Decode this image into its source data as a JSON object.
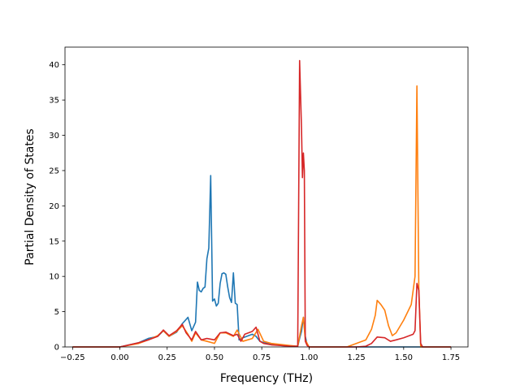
{
  "chart_data": {
    "type": "line",
    "title": "",
    "xlabel": "Frequency (THz)",
    "ylabel": "Partial Density of States",
    "xlim": [
      -0.29,
      1.84
    ],
    "ylim": [
      0,
      42.5
    ],
    "xticks": [
      -0.25,
      0.0,
      0.25,
      0.5,
      0.75,
      1.0,
      1.25,
      1.5,
      1.75
    ],
    "xtick_labels": [
      "−0.25",
      "0.00",
      "0.25",
      "0.50",
      "0.75",
      "1.00",
      "1.25",
      "1.50",
      "1.75"
    ],
    "yticks": [
      0,
      5,
      10,
      15,
      20,
      25,
      30,
      35,
      40
    ],
    "ytick_labels": [
      "0",
      "5",
      "10",
      "15",
      "20",
      "25",
      "30",
      "35",
      "40"
    ],
    "grid": false,
    "legend": false,
    "series": [
      {
        "color": "#1f77b4",
        "x": [
          -0.25,
          0.0,
          0.05,
          0.1,
          0.15,
          0.2,
          0.23,
          0.26,
          0.3,
          0.33,
          0.36,
          0.38,
          0.4,
          0.41,
          0.42,
          0.43,
          0.44,
          0.45,
          0.46,
          0.47,
          0.48,
          0.49,
          0.5,
          0.51,
          0.52,
          0.53,
          0.54,
          0.55,
          0.56,
          0.57,
          0.58,
          0.59,
          0.6,
          0.61,
          0.62,
          0.63,
          0.65,
          0.67,
          0.7,
          0.72,
          0.74,
          0.76,
          0.8,
          0.85,
          0.9,
          0.94,
          0.95,
          0.96,
          0.97,
          0.98,
          0.99,
          1.0,
          1.3,
          1.5,
          1.6,
          1.75
        ],
        "y": [
          0,
          0,
          0.3,
          0.6,
          1.2,
          1.5,
          2.3,
          1.5,
          2.1,
          3.3,
          4.2,
          2.3,
          3.5,
          9.2,
          8.0,
          7.8,
          8.3,
          8.5,
          12.5,
          14.0,
          24.3,
          6.5,
          6.8,
          5.8,
          6.2,
          9.0,
          10.4,
          10.5,
          10.3,
          8.5,
          7.0,
          6.3,
          10.5,
          6.2,
          6.0,
          1.0,
          1.3,
          1.5,
          1.8,
          1.5,
          0.8,
          0.6,
          0.4,
          0.2,
          0.1,
          0.1,
          1.2,
          2.2,
          4.2,
          1.5,
          0.3,
          0,
          0,
          0,
          0,
          0
        ]
      },
      {
        "color": "#ff7f0e",
        "x": [
          -0.25,
          0.0,
          0.1,
          0.15,
          0.2,
          0.23,
          0.26,
          0.3,
          0.33,
          0.36,
          0.38,
          0.4,
          0.43,
          0.46,
          0.5,
          0.53,
          0.56,
          0.6,
          0.62,
          0.65,
          0.7,
          0.73,
          0.76,
          0.8,
          0.9,
          0.94,
          0.95,
          0.96,
          0.97,
          0.98,
          1.0,
          1.2,
          1.3,
          1.33,
          1.35,
          1.36,
          1.38,
          1.4,
          1.42,
          1.44,
          1.46,
          1.5,
          1.54,
          1.56,
          1.57,
          1.58,
          1.59,
          1.75
        ],
        "y": [
          0,
          0,
          0.5,
          1.0,
          1.6,
          2.3,
          1.5,
          2.2,
          3.0,
          1.8,
          0.8,
          2.0,
          1.0,
          0.8,
          0.5,
          2.0,
          2.0,
          1.5,
          2.4,
          0.8,
          1.2,
          2.5,
          0.8,
          0.5,
          0.2,
          0.1,
          1.5,
          3.0,
          4.2,
          1.0,
          0,
          0,
          1.0,
          2.5,
          4.5,
          6.6,
          6.0,
          5.2,
          3.0,
          1.6,
          2.0,
          3.8,
          6.0,
          10.0,
          37.0,
          8.5,
          0,
          0
        ]
      },
      {
        "color": "#d62728",
        "x": [
          -0.25,
          0.0,
          0.1,
          0.15,
          0.2,
          0.23,
          0.26,
          0.3,
          0.33,
          0.35,
          0.38,
          0.4,
          0.41,
          0.43,
          0.46,
          0.5,
          0.53,
          0.56,
          0.6,
          0.62,
          0.64,
          0.66,
          0.68,
          0.7,
          0.72,
          0.74,
          0.76,
          0.8,
          0.85,
          0.9,
          0.94,
          0.95,
          0.96,
          0.965,
          0.97,
          0.975,
          0.98,
          0.99,
          1.0,
          1.25,
          1.3,
          1.33,
          1.36,
          1.4,
          1.43,
          1.46,
          1.5,
          1.55,
          1.56,
          1.57,
          1.58,
          1.59,
          1.6,
          1.75
        ],
        "y": [
          0,
          0,
          0.6,
          1.0,
          1.5,
          2.4,
          1.6,
          2.3,
          3.2,
          2.0,
          1.0,
          2.2,
          1.8,
          1.0,
          1.2,
          1.0,
          2.0,
          2.1,
          1.6,
          1.8,
          0.8,
          1.8,
          2.0,
          2.2,
          2.8,
          0.8,
          0.5,
          0.3,
          0.2,
          0.1,
          0.1,
          40.6,
          31.0,
          24.0,
          27.5,
          25.0,
          0.8,
          0.2,
          0,
          0,
          0.1,
          0.5,
          1.4,
          1.3,
          0.8,
          1.0,
          1.3,
          1.8,
          2.3,
          9.0,
          8.0,
          0.5,
          0,
          0
        ]
      }
    ]
  }
}
